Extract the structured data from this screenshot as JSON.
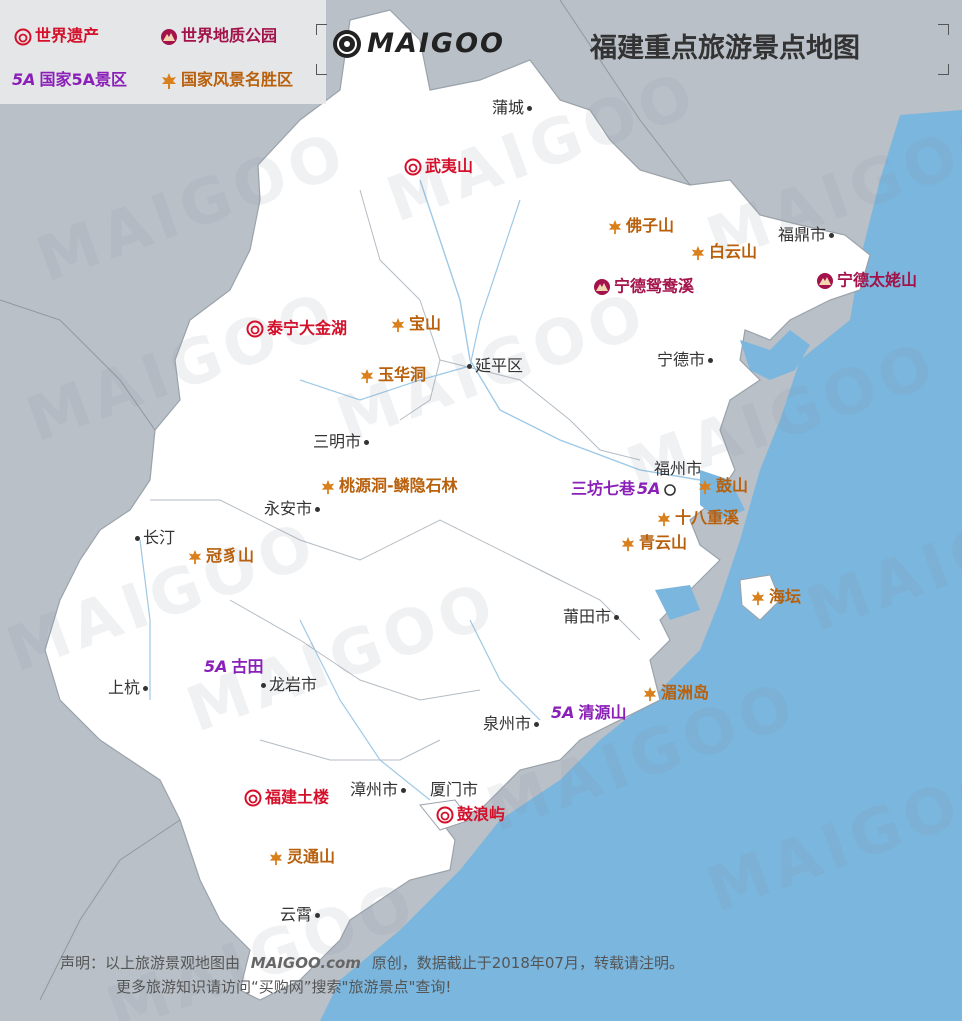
{
  "title": "福建重点旅游景点地图",
  "brand": "MAIGOO",
  "legend": {
    "heritage": "世界遗产",
    "geopark": "世界地质公园",
    "fiveA_badge": "5A",
    "fiveA": "国家5A景区",
    "scenic": "国家风景名胜区"
  },
  "colors": {
    "sea": "#7ab6dd",
    "land": "#ffffff",
    "neighbor": "#b9c0c8",
    "heritage": "#d4102b",
    "geopark": "#a3124a",
    "fiveA": "#8a20b8",
    "scenic": "#b8600c"
  },
  "cities": {
    "pucheng": "蒲城",
    "fuding": "福鼎市",
    "ningde": "宁德市",
    "yanping": "延平区",
    "sanming": "三明市",
    "fuzhou": "福州市",
    "yongan": "永安市",
    "changting": "长汀",
    "putian": "莆田市",
    "shanghang": "上杭",
    "longyan": "龙岩市",
    "quanzhou": "泉州市",
    "zhangzhou": "漳州市",
    "xiamen": "厦门市",
    "yunxiao": "云霄"
  },
  "sites": {
    "wuyishan": "武夷山",
    "foziShan": "佛子山",
    "baiyunshan": "白云山",
    "ningdeYuanyangxi": "宁德鸳鸯溪",
    "ningdeTaimushan": "宁德太姥山",
    "tainingDajinhu": "泰宁大金湖",
    "baoshan": "宝山",
    "yuhuadong": "玉华洞",
    "taoyuandong": "桃源洞-鳞隐石林",
    "sanfangqixiang": "三坊七巷",
    "sanfangBadge": "5A",
    "gushan": "鼓山",
    "shibachongxi": "十八重溪",
    "qingyunshan": "青云山",
    "guanzhaishan": "冠豸山",
    "haitan": "海坛",
    "gutianBadge": "5A",
    "gutian": "古田",
    "meizhoudao": "湄洲岛",
    "qingyuanBadge": "5A",
    "qingyuanshan": "清源山",
    "fujianTulou": "福建土楼",
    "gulangyu": "鼓浪屿",
    "lingtongshan": "灵通山"
  },
  "declaration": {
    "line1_a": "声明：以上旅游景观地图由",
    "line1_brand": "MAIGOO.com",
    "line1_b": "原创，数据截止于2018年07月，转载请注明。",
    "line2": "更多旅游知识请访问“买购网”搜索\"旅游景点\"查询!"
  }
}
